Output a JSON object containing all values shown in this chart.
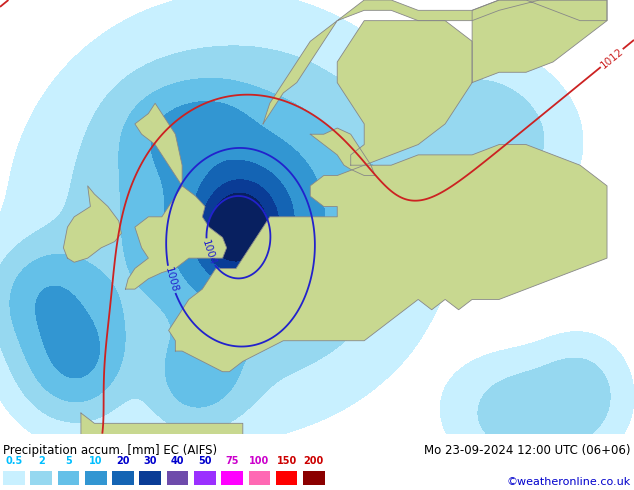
{
  "title_left": "Precipitation accum. [mm] EC (AIFS)",
  "title_right": "Mo 23-09-2024 12:00 UTC (06+06)",
  "credit": "©weatheronline.co.uk",
  "legend_values": [
    "0.5",
    "2",
    "5",
    "10",
    "20",
    "30",
    "40",
    "50",
    "75",
    "100",
    "150",
    "200"
  ],
  "legend_colors": [
    "#b0e8ff",
    "#78cff0",
    "#46b4e6",
    "#1e8ac8",
    "#0a5aa0",
    "#083280",
    "#1e3c96",
    "#2850b4",
    "#3c78d8",
    "#6496e6",
    "#96c8f0",
    "#c8e6ff"
  ],
  "precip_colors": [
    "#c8f0ff",
    "#96d8f0",
    "#64c0e8",
    "#3296d2",
    "#1464b4",
    "#0a3c96",
    "#1464b4",
    "#3296d2",
    "#64c0e8",
    "#96d8f0",
    "#c8f0ff",
    "#e0f8ff"
  ],
  "land_color": "#c8d890",
  "land_gray_color": "#d0d0d0",
  "sea_color": "#e8e8ec",
  "background_color": "#e4e4e8",
  "bottom_bg": "#ffffff",
  "isobar_blue_color": "#2222cc",
  "isobar_red_color": "#cc2222",
  "coast_color": "#888888",
  "label_fontsize": 9,
  "credit_color": "#0000cc",
  "figsize": [
    6.34,
    4.9
  ],
  "dpi": 100,
  "map_xlim": [
    -15,
    32
  ],
  "map_ylim": [
    43,
    64
  ],
  "precip_levels": [
    0.5,
    2,
    5,
    10,
    20,
    30,
    40,
    50,
    75,
    100,
    150,
    200,
    300
  ],
  "precip_fill_colors": [
    "#c8f0ff",
    "#96d8f0",
    "#64c0e8",
    "#3296d2",
    "#1464b4",
    "#0a3c96",
    "#082878",
    "#082878",
    "#082878",
    "#082878",
    "#082878",
    "#082878"
  ],
  "legend_label_colors_groups": [
    [
      "#00bfff",
      "#00bfff",
      "#00bfff",
      "#00bfff"
    ],
    [
      "#0000cd",
      "#0000cd",
      "#0000cd",
      "#0000cd"
    ],
    [
      "#cc00cc",
      "#cc00cc",
      "#cc0000",
      "#cc0000"
    ]
  ]
}
